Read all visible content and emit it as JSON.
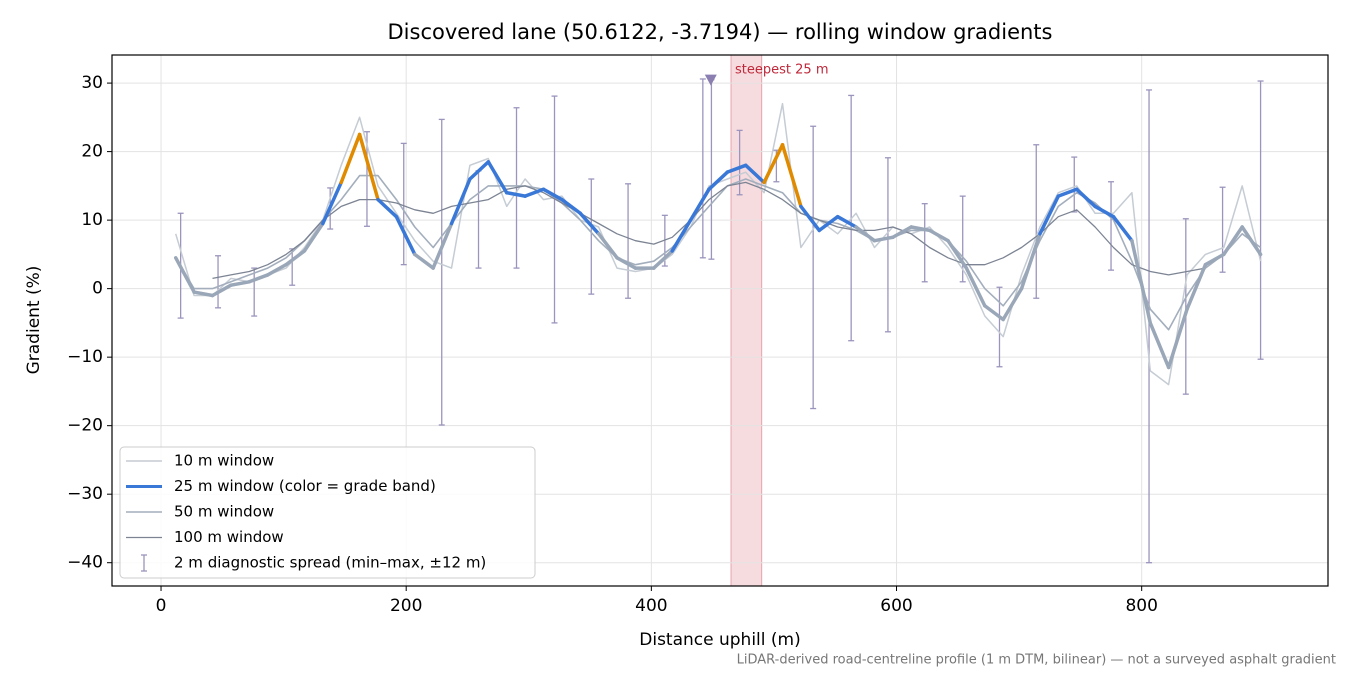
{
  "chart_data": {
    "type": "line",
    "title": "Discovered lane (50.6122, -3.7194) — rolling window gradients",
    "xlabel": "Distance uphill (m)",
    "ylabel": "Gradient (%)",
    "footnote": "LiDAR-derived road-centreline profile (1 m DTM, bilinear) — not a surveyed asphalt gradient",
    "xlim": [
      -40,
      952
    ],
    "ylim": [
      -43.4,
      34.1
    ],
    "xticks": [
      0,
      200,
      400,
      600,
      800
    ],
    "yticks": [
      {
        "value": -40,
        "label": "−40"
      },
      {
        "value": -30,
        "label": "−30"
      },
      {
        "value": -20,
        "label": "−20"
      },
      {
        "value": -10,
        "label": "−10"
      },
      0,
      10,
      20,
      30
    ],
    "grid": true,
    "legend": "lower left",
    "highlight": {
      "xlim": [
        465,
        490
      ],
      "color": "#f2c4c9"
    },
    "annotation": "steepest 25 m",
    "annotation_color": "#c0283a",
    "marker": {
      "x": 448.5,
      "y": 30.5,
      "color": "#8a7fb0"
    },
    "x": [
      12,
      27,
      42,
      57,
      72,
      87,
      102,
      117,
      132,
      147,
      162,
      177,
      192,
      207,
      222,
      237,
      252,
      267,
      282,
      297,
      312,
      327,
      342,
      357,
      372,
      387,
      402,
      417,
      432,
      447,
      462,
      477,
      492,
      507,
      522,
      537,
      552,
      567,
      582,
      597,
      612,
      627,
      642,
      657,
      672,
      687,
      702,
      717,
      732,
      747,
      762,
      777,
      792,
      807,
      822,
      837,
      852,
      867,
      882,
      897
    ],
    "series": [
      {
        "name": "10 m window",
        "color": "#c5ccd4",
        "width": 1.5,
        "values": [
          8,
          -1,
          -1,
          1.5,
          1,
          2,
          3,
          6,
          10,
          18,
          25,
          15,
          11,
          7,
          4,
          3,
          18,
          19,
          12,
          16,
          13,
          13.5,
          10,
          9,
          3,
          2.5,
          3,
          5,
          9,
          15,
          16,
          17,
          14,
          27,
          6,
          10,
          8,
          11,
          6,
          9,
          8,
          9,
          6,
          2,
          -4,
          -7,
          2,
          9,
          14,
          15,
          11,
          11,
          14,
          -12,
          -14,
          2,
          5,
          6,
          15,
          4
        ]
      },
      {
        "name": "25 m window (color = grade band)",
        "color": "#9aa7b8",
        "width": 3.5,
        "grade_bands": [
          {
            "from": 10,
            "color": "#3a78d8"
          },
          {
            "from": 20,
            "color": "#e08a00"
          }
        ],
        "values": [
          4.5,
          -0.5,
          -1,
          0.5,
          1,
          2,
          3.5,
          5.5,
          9.5,
          15.5,
          22.5,
          13,
          10.5,
          5,
          3,
          9.5,
          16,
          18.5,
          14,
          13.5,
          14.5,
          13,
          11,
          8,
          4.5,
          3,
          3,
          5.5,
          10,
          14.5,
          17,
          18,
          15.5,
          21,
          12,
          8.5,
          10.5,
          9,
          7,
          7.5,
          9,
          8.5,
          7,
          3,
          -2.5,
          -4.5,
          0,
          8,
          13.5,
          14.5,
          12,
          10.5,
          7,
          -5,
          -11.5,
          -3,
          3.5,
          5,
          9,
          5
        ]
      },
      {
        "name": "50 m window",
        "color": "#a3aebd",
        "width": 1.6,
        "values": [
          4.5,
          0,
          0,
          1,
          2,
          3,
          4.5,
          7,
          10,
          13,
          16.5,
          16.5,
          13,
          9,
          6,
          9.5,
          13,
          15,
          15,
          15,
          14.5,
          12.5,
          10,
          7,
          4.5,
          3.5,
          4,
          6,
          9,
          12,
          15,
          16,
          15,
          14,
          11,
          10,
          9.5,
          8.5,
          7,
          7.5,
          8.5,
          8.5,
          7,
          4,
          0,
          -2.5,
          1,
          7,
          12,
          14,
          12.5,
          10,
          4,
          -3,
          -6,
          -1,
          3,
          5,
          8,
          6
        ]
      },
      {
        "name": "100 m window",
        "color": "#7c8493",
        "width": 1.3,
        "values": [
          null,
          null,
          1.5,
          2,
          2.5,
          3.5,
          5,
          7,
          10,
          12,
          13,
          13,
          12.5,
          11.5,
          11,
          12,
          12.5,
          13,
          14.5,
          15,
          14,
          12.5,
          11,
          9.5,
          8,
          7,
          6.5,
          7.5,
          10,
          13,
          15,
          15.5,
          14.5,
          13,
          11,
          10,
          9,
          8.5,
          8.5,
          9,
          8,
          6,
          4.5,
          3.5,
          3.5,
          4.5,
          6,
          8,
          10.5,
          11.5,
          9,
          6,
          3.5,
          2.5,
          2,
          2.5,
          3,
          null,
          null,
          null
        ]
      }
    ],
    "error_bars": {
      "name": "2 m diagnostic spread (min–max, ±12 m)",
      "color": "#9b95bd",
      "x": [
        16,
        46.5,
        76,
        107,
        138,
        168,
        198,
        229,
        259,
        290,
        321,
        351,
        381,
        411,
        442,
        449,
        472,
        502,
        532,
        563,
        593,
        623,
        654,
        684,
        714,
        745,
        775,
        806,
        836,
        866,
        897
      ],
      "min": [
        -4.3,
        -2.8,
        -4,
        0.5,
        8.7,
        9.1,
        3.5,
        -19.9,
        3,
        3,
        -5,
        -0.8,
        -1.4,
        3.3,
        4.5,
        4.3,
        13.7,
        15.6,
        -17.5,
        -7.6,
        -6.3,
        1,
        1,
        -11.4,
        -1.4,
        11.2,
        2.7,
        -40,
        -15.4,
        2.4,
        -10.3
      ],
      "max": [
        11,
        4.8,
        3,
        5.8,
        14.7,
        22.9,
        21.2,
        24.7,
        17.2,
        26.4,
        28.1,
        16,
        15.3,
        10.7,
        30.6,
        30.5,
        23.1,
        20.2,
        23.7,
        28.2,
        19.1,
        12.4,
        13.5,
        0.2,
        21,
        19.2,
        15.6,
        29,
        10.2,
        14.8,
        30.3
      ]
    }
  }
}
